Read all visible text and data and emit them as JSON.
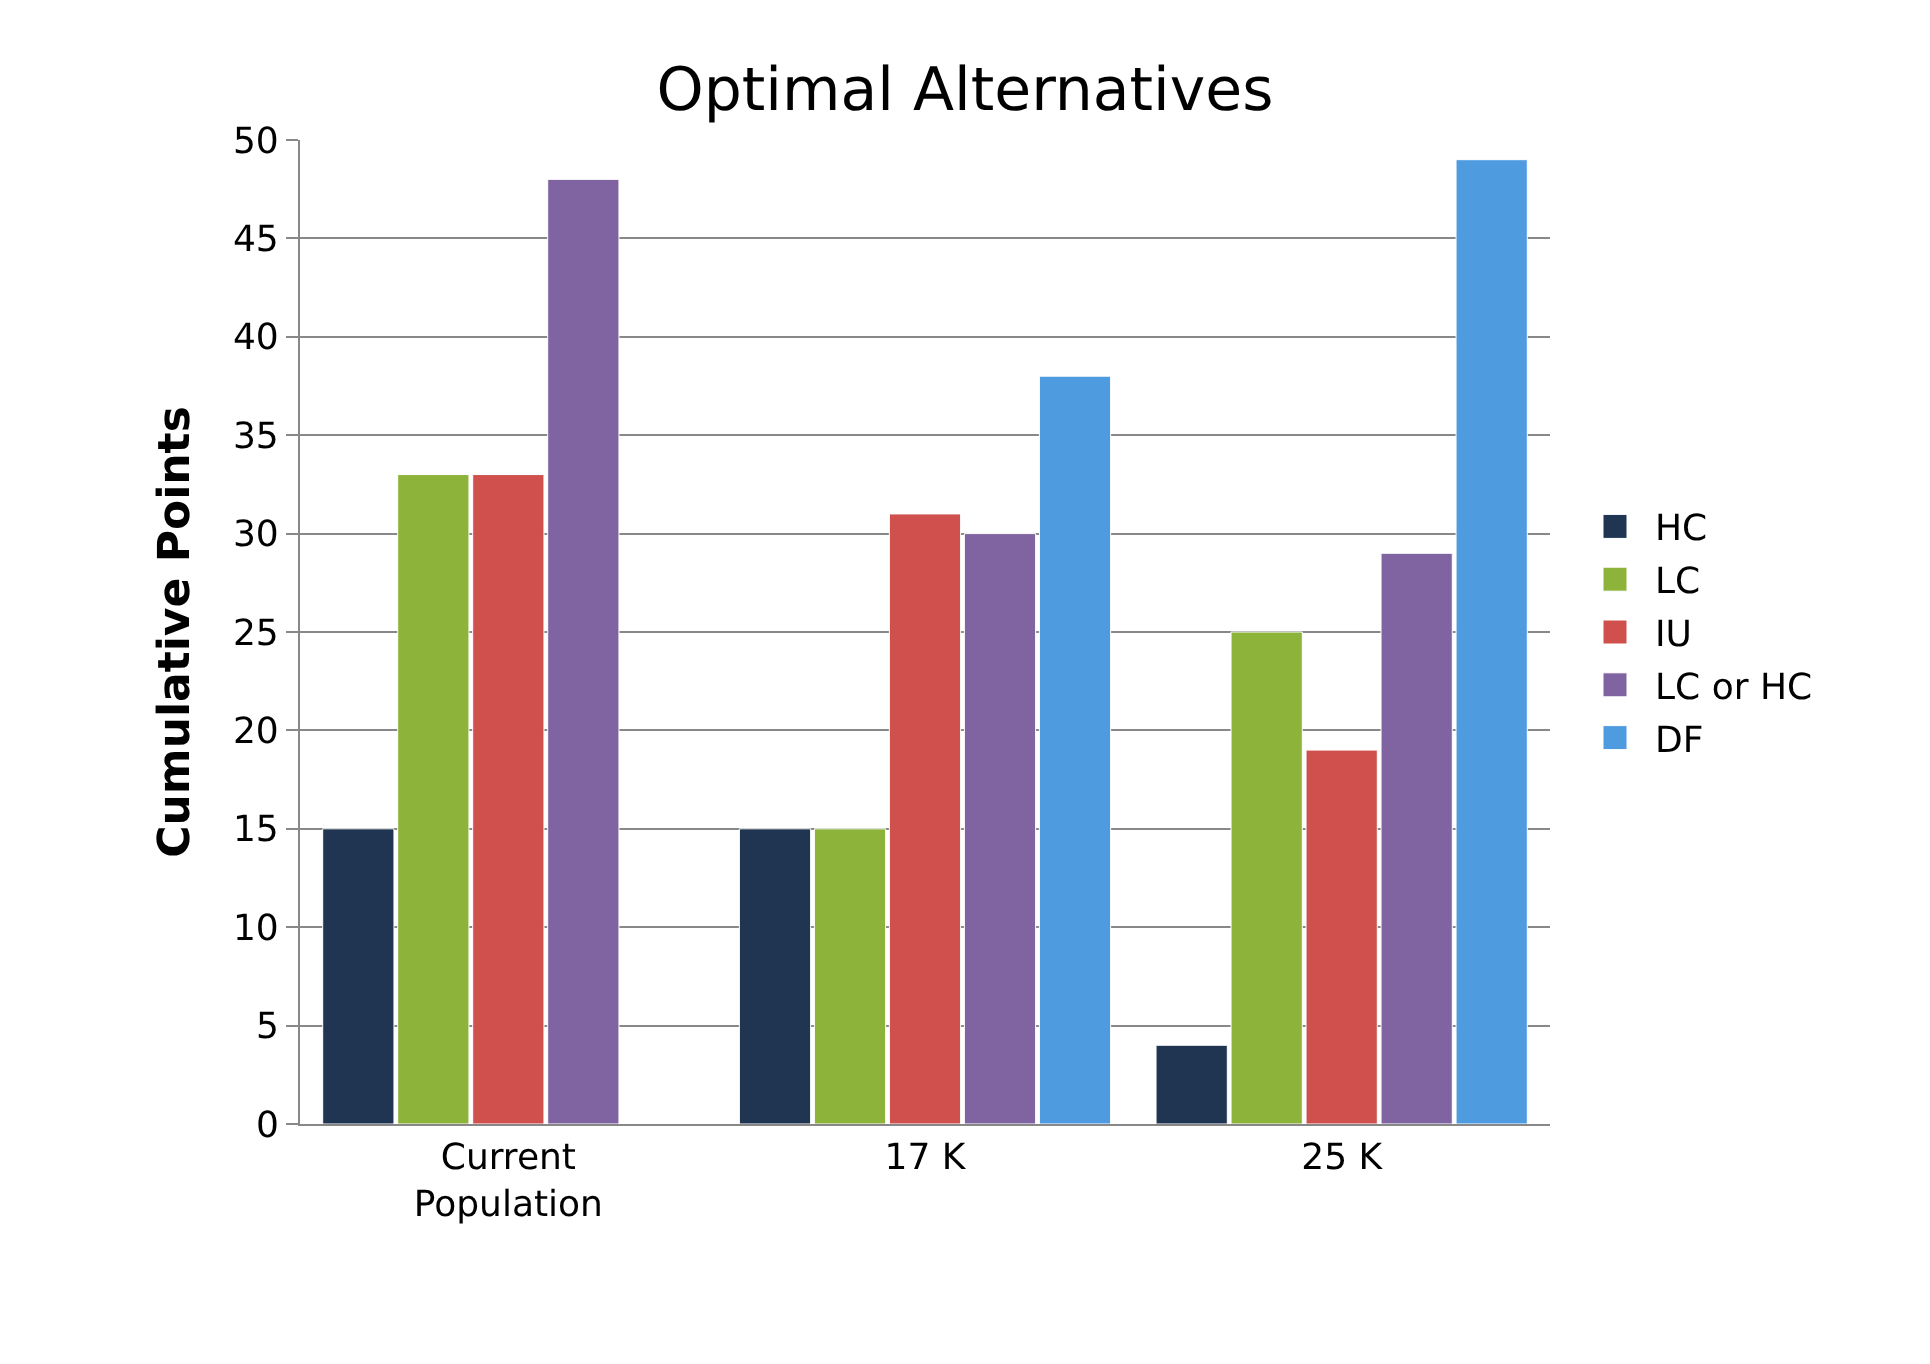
{
  "chart_data": {
    "type": "bar",
    "title": "Optimal Alternatives",
    "ylabel": "Cumulative Points",
    "categories": [
      "Current Population",
      "17 K",
      "25 K"
    ],
    "series": [
      {
        "name": "HC",
        "color": "#1f3551",
        "values": [
          15,
          15,
          4
        ]
      },
      {
        "name": "LC",
        "color": "#8eb33b",
        "values": [
          33,
          15,
          25
        ]
      },
      {
        "name": "IU",
        "color": "#d0504e",
        "values": [
          33,
          31,
          19
        ]
      },
      {
        "name": "LC or HC",
        "color": "#8064a2",
        "values": [
          48,
          30,
          29
        ]
      },
      {
        "name": "DF",
        "color": "#4f9be0",
        "values": [
          null,
          38,
          49
        ]
      }
    ],
    "ylim": [
      0,
      50
    ],
    "yticks": [
      0,
      5,
      10,
      15,
      20,
      25,
      30,
      35,
      40,
      45,
      50
    ],
    "grid": "y",
    "legend": "right"
  }
}
